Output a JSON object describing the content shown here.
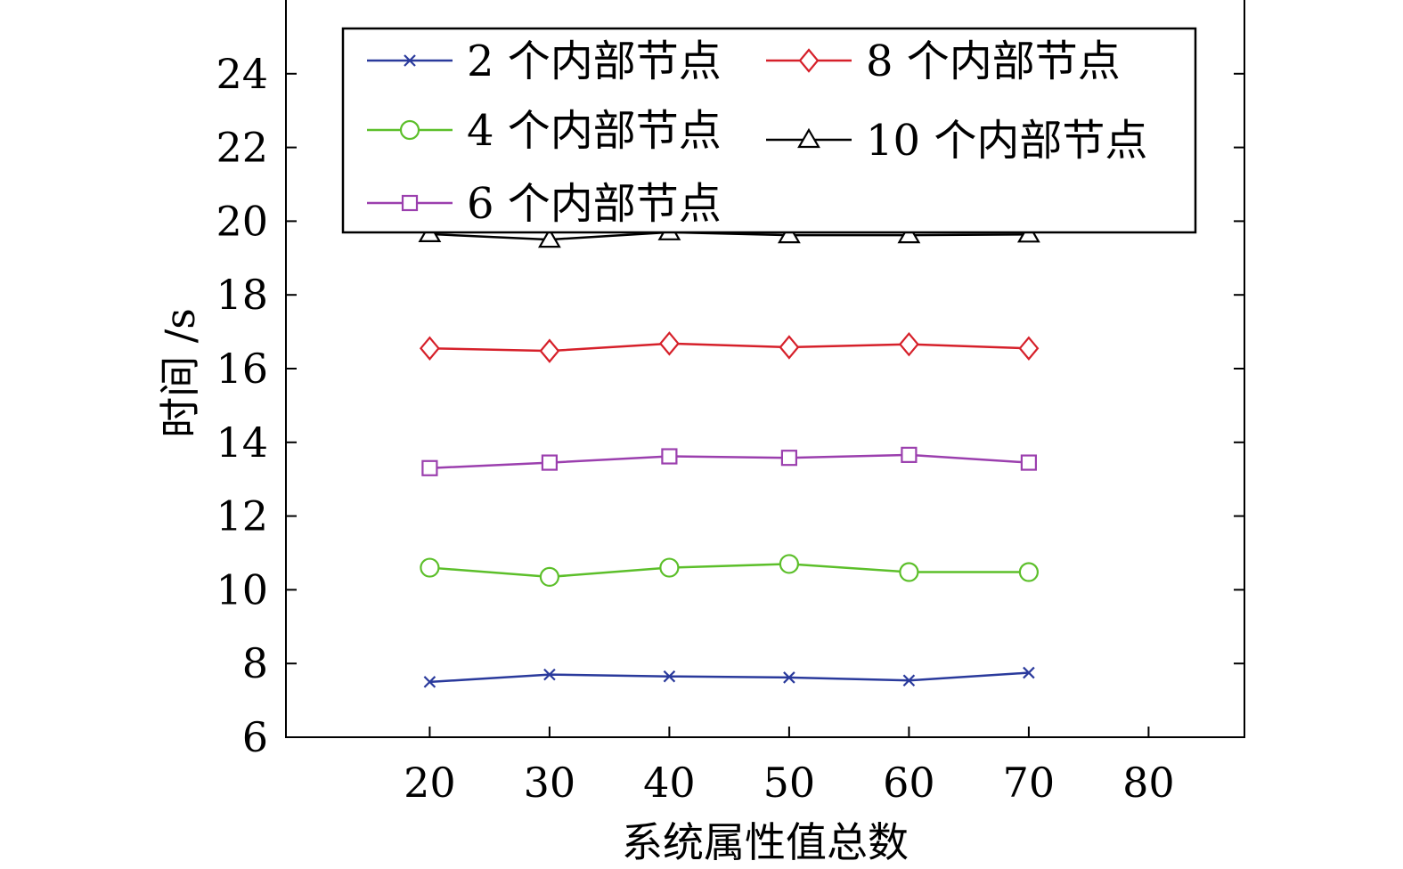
{
  "chart_data": {
    "type": "line",
    "title": "",
    "xlabel": "系统属性值总数",
    "ylabel": "时间 /s",
    "x": [
      20,
      30,
      40,
      50,
      60,
      70
    ],
    "xticks": [
      20,
      30,
      40,
      50,
      60,
      70,
      80
    ],
    "yticks": [
      6,
      8,
      10,
      12,
      14,
      16,
      18,
      20,
      22,
      24
    ],
    "xlim": [
      8,
      88
    ],
    "ylim": [
      6,
      26
    ],
    "grid": false,
    "legend_position": "top",
    "series": [
      {
        "name": "2 个内部节点",
        "color": "#2a3a9c",
        "marker": "x",
        "values": [
          7.5,
          7.7,
          7.65,
          7.62,
          7.54,
          7.75
        ]
      },
      {
        "name": "4 个内部节点",
        "color": "#5cbf2a",
        "marker": "circle",
        "values": [
          10.6,
          10.35,
          10.6,
          10.7,
          10.48,
          10.48
        ]
      },
      {
        "name": "6 个内部节点",
        "color": "#9b3fae",
        "marker": "square",
        "values": [
          13.3,
          13.45,
          13.62,
          13.58,
          13.66,
          13.45
        ]
      },
      {
        "name": "8 个内部节点",
        "color": "#d6202a",
        "marker": "diamond",
        "values": [
          16.55,
          16.48,
          16.68,
          16.58,
          16.66,
          16.55
        ]
      },
      {
        "name": "10 个内部节点",
        "color": "#000000",
        "marker": "triangle",
        "values": [
          19.65,
          19.5,
          19.7,
          19.62,
          19.62,
          19.64
        ]
      }
    ]
  }
}
